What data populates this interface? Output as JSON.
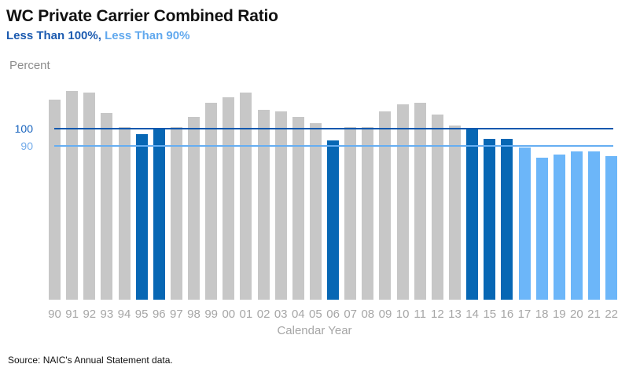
{
  "title": "WC Private Carrier Combined Ratio",
  "subtitle": {
    "part1": "Less Than 100%,",
    "part2": "Less Than 90%"
  },
  "y_axis": {
    "label": "Percent",
    "ticks": [
      {
        "label": "100",
        "value": 100
      },
      {
        "label": "90",
        "value": 90
      }
    ]
  },
  "x_axis": {
    "label": "Calendar Year"
  },
  "source": "Source: NAIC's Annual Statement data.",
  "colors": {
    "bar_neutral": "#C7C7C7",
    "bar_lt100": "#0767B4",
    "bar_lt90": "#6CB6F9",
    "line_100": "#0B58AE",
    "line_90": "#66AEF2",
    "tick_100": "#1763BE",
    "tick_90": "#74ACEA",
    "subtitle_dark": "#1C5BB0",
    "subtitle_light": "#62A9EE",
    "year_label": "#A6A6A6",
    "title_text": "#111111"
  },
  "chart_data": {
    "type": "bar",
    "title": "WC Private Carrier Combined Ratio",
    "xlabel": "Calendar Year",
    "ylabel": "Percent",
    "categories": [
      "90",
      "91",
      "92",
      "93",
      "94",
      "95",
      "96",
      "97",
      "98",
      "99",
      "00",
      "01",
      "02",
      "03",
      "04",
      "05",
      "06",
      "07",
      "08",
      "09",
      "10",
      "11",
      "12",
      "13",
      "14",
      "15",
      "16",
      "17",
      "18",
      "19",
      "20",
      "21",
      "22"
    ],
    "values": [
      117,
      122,
      121,
      109,
      101,
      97,
      100,
      101,
      107,
      115,
      118,
      121,
      111,
      110,
      107,
      103,
      93,
      101,
      101,
      110,
      114,
      115,
      108,
      102,
      100,
      94,
      94,
      89,
      83,
      85,
      87,
      87,
      84
    ],
    "bar_categories": [
      "neutral",
      "neutral",
      "neutral",
      "neutral",
      "neutral",
      "lt100",
      "lt100",
      "neutral",
      "neutral",
      "neutral",
      "neutral",
      "neutral",
      "neutral",
      "neutral",
      "neutral",
      "neutral",
      "lt100",
      "neutral",
      "neutral",
      "neutral",
      "neutral",
      "neutral",
      "neutral",
      "neutral",
      "lt100",
      "lt100",
      "lt100",
      "lt90",
      "lt90",
      "lt90",
      "lt90",
      "lt90",
      "lt90"
    ],
    "series_legend": {
      "lt100": "Less Than 100%",
      "lt90": "Less Than 90%"
    },
    "gridlines": [
      100,
      90
    ],
    "ylim": [
      0,
      125
    ],
    "grid": "horizontal-reference-lines-only",
    "legend_position": "subtitle-top-left"
  }
}
